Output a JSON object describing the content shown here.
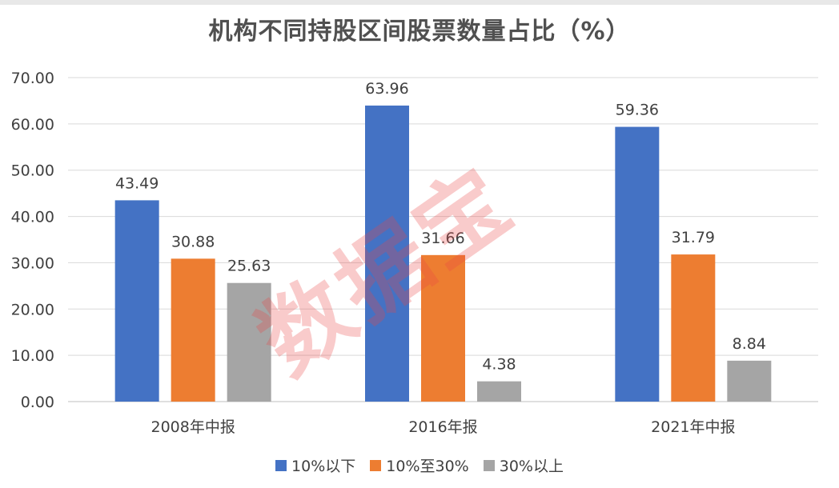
{
  "chart_data": {
    "type": "bar",
    "title": "机构不同持股区间股票数量占比（%）",
    "categories": [
      "2008年中报",
      "2016年报",
      "2021年中报"
    ],
    "series": [
      {
        "name": "10%以下",
        "color": "#4472C4",
        "values": [
          43.49,
          63.96,
          59.36
        ]
      },
      {
        "name": "10%至30%",
        "color": "#ED7D31",
        "values": [
          30.88,
          31.66,
          31.79
        ]
      },
      {
        "name": "30%以上",
        "color": "#A5A5A5",
        "values": [
          25.63,
          4.38,
          8.84
        ]
      }
    ],
    "value_labels": [
      [
        "43.49",
        "63.96",
        "59.36"
      ],
      [
        "30.88",
        "31.66",
        "31.79"
      ],
      [
        "25.63",
        "4.38",
        "8.84"
      ]
    ],
    "ylim": [
      0,
      70
    ],
    "yticks": [
      "0.00",
      "10.00",
      "20.00",
      "30.00",
      "40.00",
      "50.00",
      "60.00",
      "70.00"
    ],
    "grid": true,
    "legend_position": "bottom"
  },
  "watermark": "数据宝"
}
